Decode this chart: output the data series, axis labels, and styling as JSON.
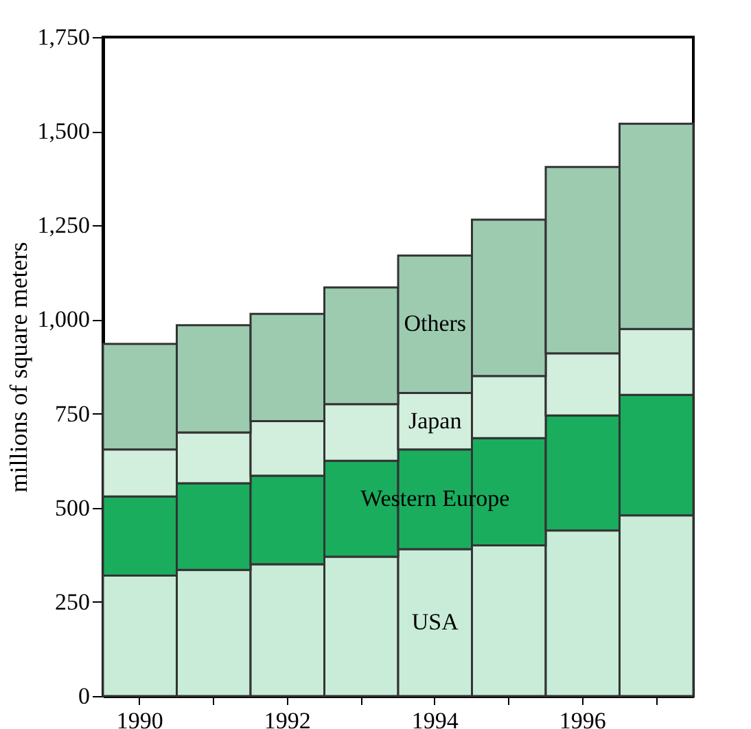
{
  "chart_data": {
    "type": "bar",
    "stacked": true,
    "ylabel": "millions of square meters",
    "categories": [
      "1990",
      null,
      "1992",
      null,
      "1994",
      null,
      "1996",
      null
    ],
    "series": [
      {
        "name": "USA",
        "color": "#c8ecd8",
        "values": [
          320,
          335,
          350,
          370,
          390,
          400,
          440,
          480
        ]
      },
      {
        "name": "Western Europe",
        "color": "#1aad5e",
        "values": [
          210,
          230,
          235,
          255,
          265,
          285,
          305,
          320
        ]
      },
      {
        "name": "Japan",
        "color": "#d2eedd",
        "values": [
          125,
          135,
          145,
          150,
          150,
          165,
          165,
          175
        ]
      },
      {
        "name": "Others",
        "color": "#9ccbb0",
        "values": [
          280,
          285,
          285,
          310,
          365,
          415,
          495,
          545
        ]
      }
    ],
    "ylim": [
      0,
      1750
    ],
    "yticks": [
      0,
      250,
      500,
      750,
      {
        "value": 1000,
        "label": "1,000"
      },
      {
        "value": 1250,
        "label": "1,250"
      },
      {
        "value": 1500,
        "label": "1,500"
      },
      {
        "value": 1750,
        "label": "1,750"
      }
    ],
    "legend": false,
    "grid": false
  }
}
